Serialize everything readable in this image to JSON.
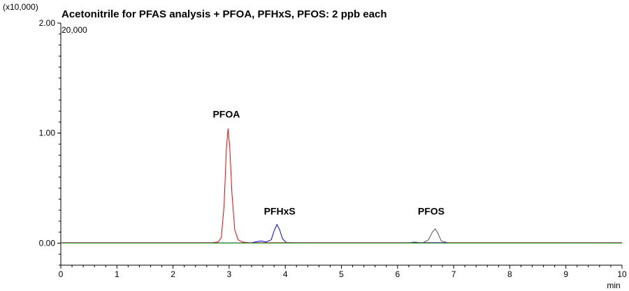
{
  "chart_data": {
    "type": "line",
    "title": "Acetonitrile for PFAS analysis + PFOA, PFHxS, PFOS: 2 ppb each",
    "multiplier_label": "(x10,000)",
    "scale_label": "20,000",
    "xlabel": "min",
    "ylabel": "",
    "xlim": [
      0,
      10
    ],
    "ylim": [
      -0.2,
      2.0
    ],
    "x_ticks": [
      "0",
      "1",
      "2",
      "3",
      "4",
      "5",
      "6",
      "7",
      "8",
      "9",
      "10"
    ],
    "y_ticks": [
      "0.00",
      "1.00",
      "2.00"
    ],
    "grid": false,
    "series": [
      {
        "name": "PFOA",
        "color": "#ff0000",
        "x": [
          0,
          2.7,
          2.8,
          2.86,
          2.91,
          2.95,
          2.98,
          3.01,
          3.05,
          3.1,
          3.16,
          3.24,
          3.35,
          10
        ],
        "y": [
          0.005,
          0.005,
          0.01,
          0.05,
          0.35,
          0.85,
          1.04,
          0.88,
          0.45,
          0.12,
          0.03,
          0.01,
          0.005,
          0.005
        ]
      },
      {
        "name": "PFHxS",
        "color": "#0000ff",
        "x": [
          0,
          3.4,
          3.5,
          3.58,
          3.65,
          3.75,
          3.8,
          3.85,
          3.9,
          3.95,
          4.02,
          4.15,
          10
        ],
        "y": [
          0.003,
          0.003,
          0.015,
          0.02,
          0.01,
          0.03,
          0.11,
          0.17,
          0.12,
          0.04,
          0.005,
          0.003,
          0.003
        ]
      },
      {
        "name": "PFOS",
        "color": "#555555",
        "x": [
          0,
          6.2,
          6.3,
          6.45,
          6.55,
          6.62,
          6.67,
          6.72,
          6.78,
          6.9,
          10
        ],
        "y": [
          0.002,
          0.002,
          0.01,
          0.003,
          0.03,
          0.1,
          0.13,
          0.09,
          0.02,
          0.003,
          0.002
        ]
      },
      {
        "name": "",
        "color": "#33aa33",
        "x": [
          0,
          10
        ],
        "y": [
          0.0,
          0.0
        ]
      }
    ],
    "annotations": [
      {
        "text": "PFOA",
        "x": 2.95,
        "y": 1.14
      },
      {
        "text": "PFHxS",
        "x": 3.9,
        "y": 0.26
      },
      {
        "text": "PFOS",
        "x": 6.6,
        "y": 0.26
      }
    ]
  }
}
